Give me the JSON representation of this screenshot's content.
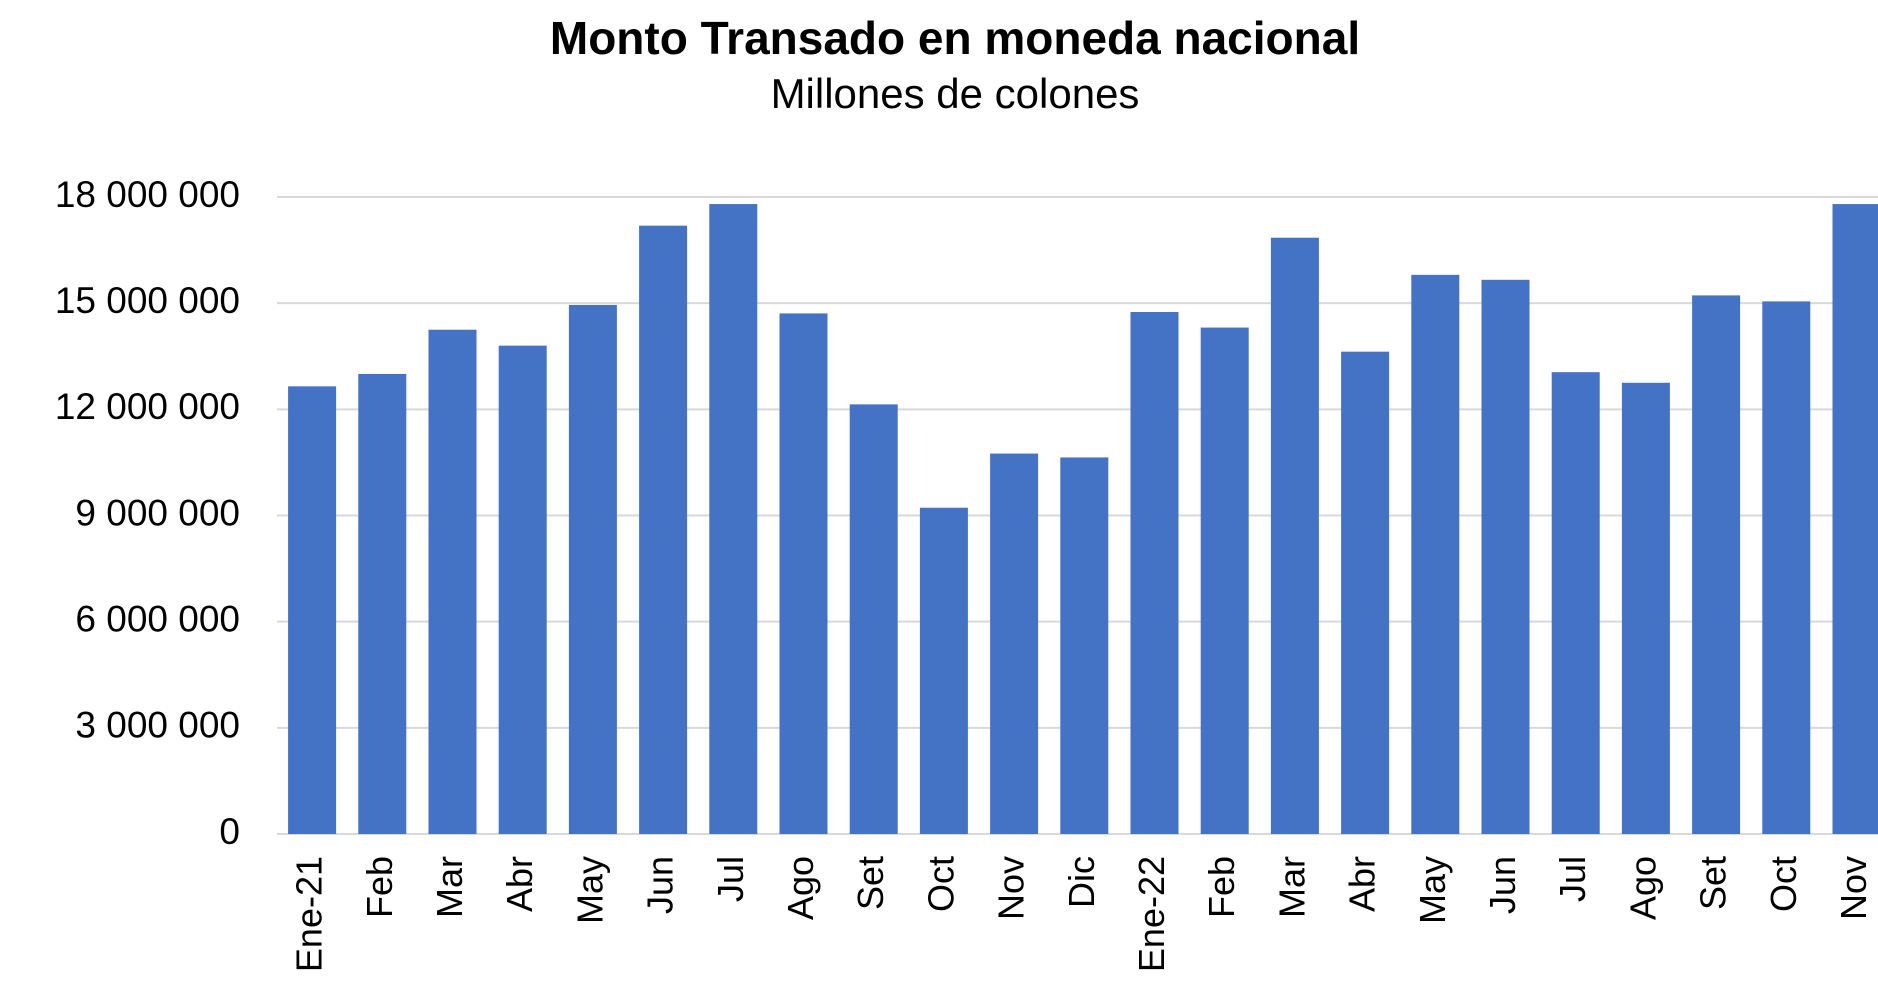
{
  "chart_data": {
    "type": "bar",
    "title": "Monto Transado en moneda nacional",
    "subtitle": "Millones de colones",
    "categories": [
      "Ene-21",
      "Feb",
      "Mar",
      "Abr",
      "May",
      "Jun",
      "Jul",
      "Ago",
      "Set",
      "Oct",
      "Nov",
      "Dic",
      "Ene-22",
      "Feb",
      "Mar",
      "Abr",
      "May",
      "Jun",
      "Jul",
      "Ago",
      "Set",
      "Oct",
      "Nov"
    ],
    "values": [
      12650000,
      13000000,
      14250000,
      13800000,
      14950000,
      17190000,
      17800000,
      14710000,
      12140000,
      9220000,
      10750000,
      10640000,
      14750000,
      14310000,
      16850000,
      13630000,
      15800000,
      15660000,
      13050000,
      12750000,
      15220000,
      15050000,
      17800000
    ],
    "color": "#4472c4",
    "ylim": [
      0,
      18000000
    ],
    "yticks": [
      0,
      {
        "value": 3000000,
        "label": "3 000 000"
      },
      {
        "value": 6000000,
        "label": "6 000 000"
      },
      {
        "value": 9000000,
        "label": "9 000 000"
      },
      {
        "value": 12000000,
        "label": "12 000 000"
      },
      {
        "value": 15000000,
        "label": "15 000 000"
      },
      {
        "value": 18000000,
        "label": "18 000 000"
      }
    ],
    "grid": true
  }
}
